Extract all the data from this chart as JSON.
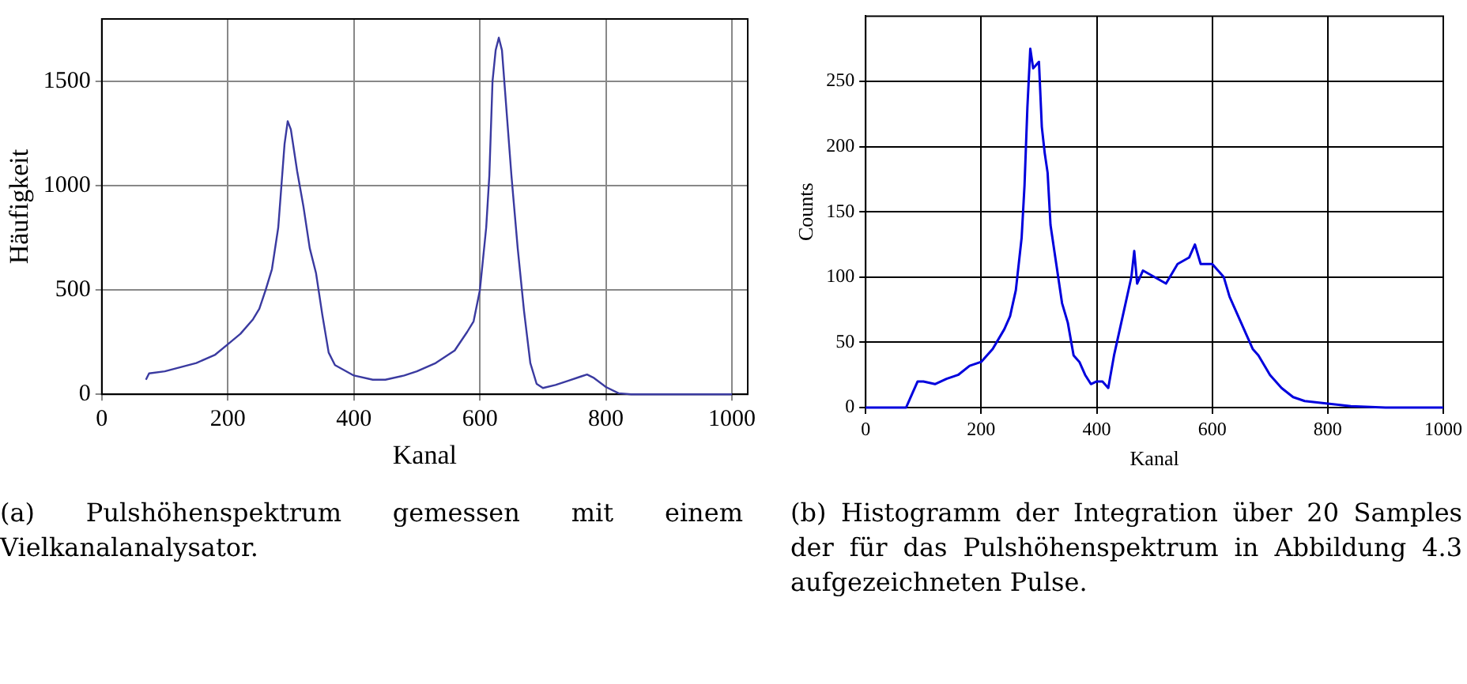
{
  "chart_data": [
    {
      "type": "line",
      "xlabel": "Kanal",
      "ylabel": "Häufigkeit",
      "xlim": [
        0,
        1025
      ],
      "ylim": [
        0,
        1800
      ],
      "xticks": [
        0,
        200,
        400,
        600,
        800,
        1000
      ],
      "yticks": [
        0,
        500,
        1000,
        1500
      ],
      "grid": true,
      "legend": false,
      "marker": "none",
      "line_style": "solid",
      "annotations": [
        "(a) Pulshöhenspektrum gemessen mit einem Vielkanalanalysator."
      ],
      "series": [
        {
          "color": "#3a3aa0",
          "x": [
            70,
            75,
            100,
            150,
            180,
            200,
            220,
            240,
            250,
            260,
            270,
            280,
            285,
            290,
            295,
            300,
            310,
            320,
            330,
            340,
            350,
            360,
            370,
            400,
            430,
            450,
            480,
            500,
            530,
            560,
            580,
            590,
            600,
            610,
            615,
            620,
            625,
            630,
            635,
            640,
            650,
            660,
            670,
            680,
            690,
            700,
            720,
            740,
            760,
            770,
            780,
            800,
            820,
            840,
            1000
          ],
          "values": [
            70,
            100,
            110,
            150,
            190,
            240,
            290,
            360,
            410,
            500,
            600,
            800,
            1000,
            1200,
            1310,
            1270,
            1070,
            900,
            700,
            580,
            380,
            200,
            140,
            90,
            70,
            70,
            90,
            110,
            150,
            210,
            300,
            350,
            500,
            800,
            1050,
            1500,
            1650,
            1710,
            1650,
            1450,
            1050,
            700,
            400,
            150,
            50,
            30,
            45,
            65,
            85,
            95,
            80,
            35,
            5,
            0,
            0
          ]
        }
      ]
    },
    {
      "type": "line",
      "xlabel": "Kanal",
      "ylabel": "Counts",
      "xlim": [
        0,
        1000
      ],
      "ylim": [
        0,
        300
      ],
      "xticks": [
        0,
        200,
        400,
        600,
        800,
        1000
      ],
      "yticks": [
        0,
        50,
        100,
        150,
        200,
        250
      ],
      "grid": true,
      "legend": false,
      "marker": "none",
      "line_style": "solid",
      "annotations": [
        "(b) Histogramm der Integration über 20 Samples der für das Pulshöhenspektrum in Abbildung 4.3 aufgezeichneten Pulse."
      ],
      "series": [
        {
          "color": "#0000dd",
          "x": [
            0,
            70,
            80,
            90,
            100,
            120,
            140,
            160,
            180,
            200,
            220,
            240,
            250,
            260,
            270,
            275,
            280,
            285,
            290,
            300,
            305,
            310,
            315,
            320,
            330,
            340,
            350,
            360,
            370,
            380,
            390,
            400,
            410,
            420,
            430,
            440,
            450,
            460,
            465,
            470,
            480,
            500,
            520,
            540,
            560,
            570,
            580,
            600,
            610,
            620,
            630,
            640,
            650,
            660,
            670,
            680,
            700,
            720,
            740,
            760,
            800,
            840,
            900,
            1000
          ],
          "values": [
            0,
            0,
            10,
            20,
            20,
            18,
            22,
            25,
            32,
            35,
            45,
            60,
            70,
            90,
            130,
            170,
            230,
            275,
            260,
            265,
            215,
            195,
            180,
            140,
            110,
            80,
            65,
            40,
            35,
            25,
            18,
            20,
            20,
            15,
            40,
            60,
            80,
            100,
            120,
            95,
            105,
            100,
            95,
            110,
            115,
            125,
            110,
            110,
            105,
            100,
            85,
            75,
            65,
            55,
            45,
            40,
            25,
            15,
            8,
            5,
            3,
            1,
            0,
            0
          ]
        }
      ]
    }
  ]
}
